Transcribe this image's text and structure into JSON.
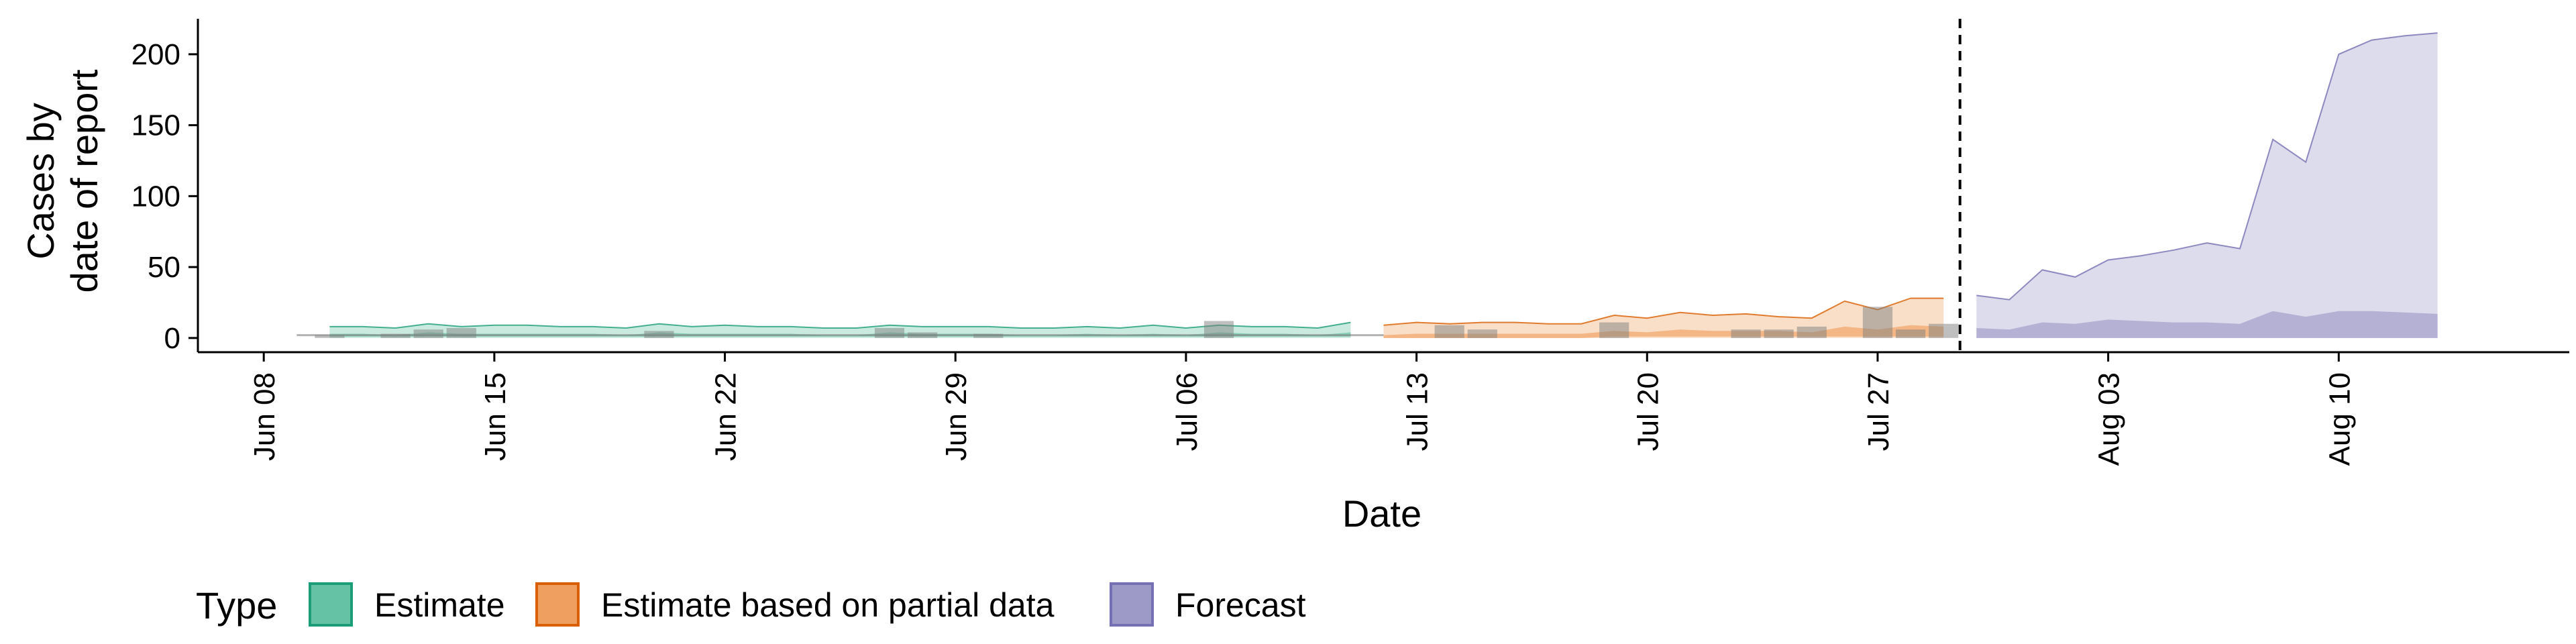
{
  "chart_data": {
    "type": "area",
    "xlabel": "Date",
    "ylabel_lines": [
      "Cases by",
      "date of report"
    ],
    "ylim": [
      -10,
      225
    ],
    "y_ticks": [
      0,
      50,
      100,
      150,
      200
    ],
    "x_range": [
      "2020-06-06",
      "2020-08-17"
    ],
    "x_ticks": [
      {
        "date": "2020-06-08",
        "label": "Jun 08"
      },
      {
        "date": "2020-06-15",
        "label": "Jun 15"
      },
      {
        "date": "2020-06-22",
        "label": "Jun 22"
      },
      {
        "date": "2020-06-29",
        "label": "Jun 29"
      },
      {
        "date": "2020-07-06",
        "label": "Jul 06"
      },
      {
        "date": "2020-07-13",
        "label": "Jul 13"
      },
      {
        "date": "2020-07-20",
        "label": "Jul 20"
      },
      {
        "date": "2020-07-27",
        "label": "Jul 27"
      },
      {
        "date": "2020-08-03",
        "label": "Aug 03"
      },
      {
        "date": "2020-08-10",
        "label": "Aug 10"
      }
    ],
    "grid": false,
    "legend_position": "bottom",
    "forecast_date": "2020-07-29",
    "legend": {
      "title": "Type",
      "entries": [
        {
          "label": "Estimate",
          "fill": "#66C2A5",
          "stroke": "#1B9E77"
        },
        {
          "label": "Estimate based on partial data",
          "fill": "#EFA060",
          "stroke": "#D95F02"
        },
        {
          "label": "Forecast",
          "fill": "#9E9AC8",
          "stroke": "#7570B3"
        }
      ]
    },
    "series": [
      {
        "name": "Estimate",
        "color": "#1B9E77",
        "fill": "#66C2A5",
        "x": [
          "2020-06-10",
          "2020-06-11",
          "2020-06-12",
          "2020-06-13",
          "2020-06-14",
          "2020-06-15",
          "2020-06-16",
          "2020-06-17",
          "2020-06-18",
          "2020-06-19",
          "2020-06-20",
          "2020-06-21",
          "2020-06-22",
          "2020-06-23",
          "2020-06-24",
          "2020-06-25",
          "2020-06-26",
          "2020-06-27",
          "2020-06-28",
          "2020-06-29",
          "2020-06-30",
          "2020-07-01",
          "2020-07-02",
          "2020-07-03",
          "2020-07-04",
          "2020-07-05",
          "2020-07-06",
          "2020-07-07",
          "2020-07-08",
          "2020-07-09",
          "2020-07-10",
          "2020-07-11"
        ],
        "upper": [
          8,
          8,
          7,
          10,
          8,
          9,
          9,
          8,
          8,
          7,
          10,
          8,
          9,
          8,
          8,
          7,
          7,
          9,
          8,
          8,
          8,
          7,
          7,
          8,
          7,
          9,
          7,
          9,
          8,
          8,
          7,
          11
        ],
        "lower": [
          0,
          0,
          0,
          0,
          0,
          0,
          0,
          0,
          0,
          0,
          0,
          0,
          0,
          0,
          0,
          0,
          0,
          0,
          0,
          0,
          0,
          0,
          0,
          0,
          0,
          0,
          0,
          0,
          0,
          0,
          0,
          0
        ],
        "inner_upper": [
          3,
          3,
          2,
          4,
          3,
          3,
          3,
          3,
          3,
          2,
          4,
          3,
          3,
          3,
          3,
          2,
          2,
          4,
          3,
          3,
          3,
          2,
          2,
          3,
          2,
          3,
          2,
          4,
          3,
          3,
          2,
          4
        ],
        "inner_lower": [
          1,
          1,
          1,
          1,
          1,
          1,
          1,
          1,
          1,
          1,
          1,
          1,
          1,
          1,
          1,
          1,
          1,
          1,
          1,
          1,
          1,
          1,
          1,
          1,
          1,
          1,
          1,
          1,
          1,
          1,
          1,
          1
        ]
      },
      {
        "name": "Estimate based on partial data",
        "color": "#D95F02",
        "fill": "#EFA060",
        "x": [
          "2020-07-12",
          "2020-07-13",
          "2020-07-14",
          "2020-07-15",
          "2020-07-16",
          "2020-07-17",
          "2020-07-18",
          "2020-07-19",
          "2020-07-20",
          "2020-07-21",
          "2020-07-22",
          "2020-07-23",
          "2020-07-24",
          "2020-07-25",
          "2020-07-26",
          "2020-07-27",
          "2020-07-28",
          "2020-07-29"
        ],
        "upper": [
          9,
          11,
          10,
          11,
          11,
          10,
          10,
          16,
          14,
          18,
          16,
          17,
          15,
          14,
          26,
          20,
          28,
          28
        ],
        "lower": [
          0,
          0,
          0,
          0,
          0,
          0,
          0,
          0,
          0,
          0,
          0,
          0,
          0,
          0,
          0,
          0,
          0,
          0
        ],
        "inner_upper": [
          2,
          3,
          3,
          3,
          3,
          3,
          3,
          5,
          4,
          6,
          5,
          5,
          5,
          4,
          8,
          6,
          9,
          8
        ],
        "inner_lower": [
          0,
          0,
          0,
          0,
          0,
          0,
          0,
          1,
          1,
          1,
          1,
          1,
          1,
          1,
          1,
          1,
          1,
          1
        ]
      },
      {
        "name": "Forecast",
        "color": "#7570B3",
        "fill": "#9E9AC8",
        "x": [
          "2020-07-30",
          "2020-07-31",
          "2020-08-01",
          "2020-08-02",
          "2020-08-03",
          "2020-08-04",
          "2020-08-05",
          "2020-08-06",
          "2020-08-07",
          "2020-08-08",
          "2020-08-09",
          "2020-08-10",
          "2020-08-11",
          "2020-08-12",
          "2020-08-13"
        ],
        "upper": [
          30,
          27,
          48,
          43,
          55,
          58,
          62,
          67,
          63,
          140,
          124,
          200,
          210,
          213,
          215
        ],
        "lower": [
          0,
          0,
          0,
          0,
          0,
          0,
          0,
          0,
          0,
          0,
          0,
          0,
          0,
          0,
          0
        ],
        "inner_upper": [
          7,
          6,
          11,
          10,
          13,
          12,
          11,
          11,
          10,
          19,
          15,
          19,
          19,
          18,
          17
        ],
        "inner_lower": [
          0,
          0,
          0,
          0,
          0,
          0,
          0,
          0,
          0,
          0,
          0,
          0,
          0,
          0,
          0
        ]
      }
    ],
    "reported_cases": {
      "color": "#7F7F7F",
      "x": [
        "2020-06-10",
        "2020-06-12",
        "2020-06-13",
        "2020-06-14",
        "2020-06-20",
        "2020-06-27",
        "2020-06-28",
        "2020-06-30",
        "2020-07-07",
        "2020-07-14",
        "2020-07-15",
        "2020-07-19",
        "2020-07-23",
        "2020-07-24",
        "2020-07-25",
        "2020-07-27",
        "2020-07-28",
        "2020-07-29"
      ],
      "values": [
        2,
        3,
        6,
        7,
        5,
        7,
        4,
        3,
        12,
        9,
        6,
        11,
        6,
        6,
        8,
        22,
        6,
        10
      ]
    },
    "median_line": {
      "x": [
        "2020-06-09",
        "2020-07-12"
      ],
      "values": [
        2,
        2
      ]
    }
  }
}
